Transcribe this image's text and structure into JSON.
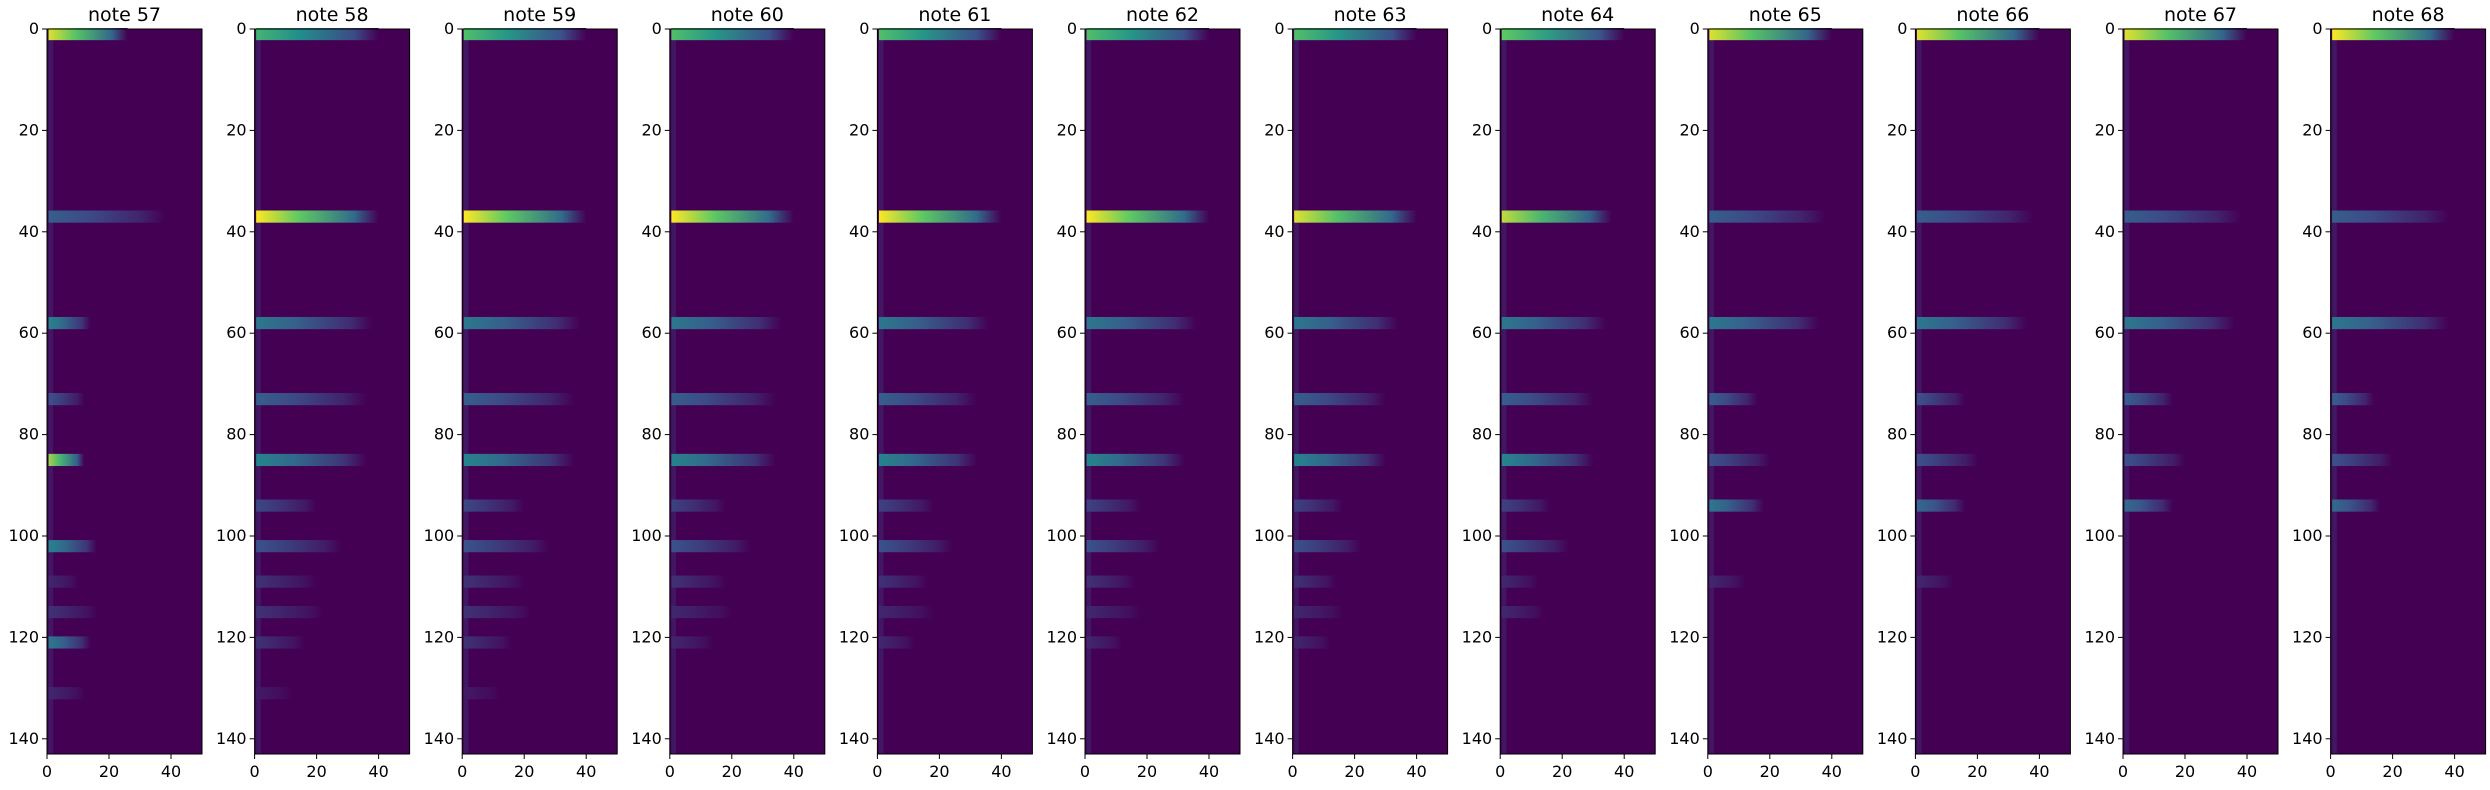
{
  "figure": {
    "colormap": "viridis",
    "background_color": "#440154"
  },
  "chart_data": {
    "type": "heatmap",
    "xlim": [
      0,
      50
    ],
    "ylim": [
      143,
      0
    ],
    "xticks": [
      0,
      20,
      40
    ],
    "yticks": [
      0,
      20,
      40,
      60,
      80,
      100,
      120,
      140
    ],
    "grid": false,
    "panels": [
      {
        "title": "note 57",
        "bands": [
          {
            "y": 1,
            "intensity": 0.95,
            "length": 26
          },
          {
            "y": 37,
            "intensity": 0.3,
            "length": 38
          },
          {
            "y": 58,
            "intensity": 0.45,
            "length": 14
          },
          {
            "y": 73,
            "intensity": 0.25,
            "length": 12
          },
          {
            "y": 85,
            "intensity": 0.85,
            "length": 12
          },
          {
            "y": 102,
            "intensity": 0.45,
            "length": 16
          },
          {
            "y": 109,
            "intensity": 0.12,
            "length": 10
          },
          {
            "y": 115,
            "intensity": 0.15,
            "length": 16
          },
          {
            "y": 121,
            "intensity": 0.4,
            "length": 14
          },
          {
            "y": 131,
            "intensity": 0.12,
            "length": 12
          }
        ]
      },
      {
        "title": "note 58",
        "bands": [
          {
            "y": 1,
            "intensity": 0.65,
            "length": 40
          },
          {
            "y": 37,
            "intensity": 1.0,
            "length": 40
          },
          {
            "y": 58,
            "intensity": 0.4,
            "length": 38
          },
          {
            "y": 73,
            "intensity": 0.3,
            "length": 36
          },
          {
            "y": 85,
            "intensity": 0.45,
            "length": 36
          },
          {
            "y": 94,
            "intensity": 0.22,
            "length": 20
          },
          {
            "y": 102,
            "intensity": 0.25,
            "length": 28
          },
          {
            "y": 109,
            "intensity": 0.15,
            "length": 20
          },
          {
            "y": 115,
            "intensity": 0.15,
            "length": 22
          },
          {
            "y": 121,
            "intensity": 0.15,
            "length": 16
          },
          {
            "y": 131,
            "intensity": 0.08,
            "length": 12
          }
        ]
      },
      {
        "title": "note 59",
        "bands": [
          {
            "y": 1,
            "intensity": 0.7,
            "length": 40
          },
          {
            "y": 37,
            "intensity": 1.0,
            "length": 40
          },
          {
            "y": 58,
            "intensity": 0.4,
            "length": 38
          },
          {
            "y": 73,
            "intensity": 0.3,
            "length": 36
          },
          {
            "y": 85,
            "intensity": 0.45,
            "length": 36
          },
          {
            "y": 94,
            "intensity": 0.22,
            "length": 20
          },
          {
            "y": 102,
            "intensity": 0.25,
            "length": 28
          },
          {
            "y": 109,
            "intensity": 0.15,
            "length": 20
          },
          {
            "y": 115,
            "intensity": 0.15,
            "length": 22
          },
          {
            "y": 121,
            "intensity": 0.15,
            "length": 16
          },
          {
            "y": 131,
            "intensity": 0.08,
            "length": 12
          }
        ]
      },
      {
        "title": "note 60",
        "bands": [
          {
            "y": 1,
            "intensity": 0.7,
            "length": 40
          },
          {
            "y": 37,
            "intensity": 1.0,
            "length": 40
          },
          {
            "y": 58,
            "intensity": 0.4,
            "length": 36
          },
          {
            "y": 73,
            "intensity": 0.3,
            "length": 34
          },
          {
            "y": 85,
            "intensity": 0.45,
            "length": 34
          },
          {
            "y": 94,
            "intensity": 0.2,
            "length": 18
          },
          {
            "y": 102,
            "intensity": 0.25,
            "length": 26
          },
          {
            "y": 109,
            "intensity": 0.15,
            "length": 18
          },
          {
            "y": 115,
            "intensity": 0.12,
            "length": 20
          },
          {
            "y": 121,
            "intensity": 0.12,
            "length": 14
          }
        ]
      },
      {
        "title": "note 61",
        "bands": [
          {
            "y": 1,
            "intensity": 0.7,
            "length": 40
          },
          {
            "y": 37,
            "intensity": 1.0,
            "length": 40
          },
          {
            "y": 58,
            "intensity": 0.4,
            "length": 36
          },
          {
            "y": 73,
            "intensity": 0.3,
            "length": 32
          },
          {
            "y": 85,
            "intensity": 0.45,
            "length": 32
          },
          {
            "y": 94,
            "intensity": 0.2,
            "length": 18
          },
          {
            "y": 102,
            "intensity": 0.25,
            "length": 24
          },
          {
            "y": 109,
            "intensity": 0.15,
            "length": 16
          },
          {
            "y": 115,
            "intensity": 0.12,
            "length": 18
          },
          {
            "y": 121,
            "intensity": 0.12,
            "length": 12
          }
        ]
      },
      {
        "title": "note 62",
        "bands": [
          {
            "y": 1,
            "intensity": 0.7,
            "length": 40
          },
          {
            "y": 37,
            "intensity": 1.0,
            "length": 40
          },
          {
            "y": 58,
            "intensity": 0.4,
            "length": 36
          },
          {
            "y": 73,
            "intensity": 0.3,
            "length": 32
          },
          {
            "y": 85,
            "intensity": 0.45,
            "length": 32
          },
          {
            "y": 94,
            "intensity": 0.2,
            "length": 18
          },
          {
            "y": 102,
            "intensity": 0.25,
            "length": 24
          },
          {
            "y": 109,
            "intensity": 0.15,
            "length": 16
          },
          {
            "y": 115,
            "intensity": 0.12,
            "length": 18
          },
          {
            "y": 121,
            "intensity": 0.12,
            "length": 12
          }
        ]
      },
      {
        "title": "note 63",
        "bands": [
          {
            "y": 1,
            "intensity": 0.7,
            "length": 40
          },
          {
            "y": 37,
            "intensity": 0.95,
            "length": 40
          },
          {
            "y": 58,
            "intensity": 0.4,
            "length": 34
          },
          {
            "y": 73,
            "intensity": 0.3,
            "length": 30
          },
          {
            "y": 85,
            "intensity": 0.45,
            "length": 30
          },
          {
            "y": 94,
            "intensity": 0.2,
            "length": 16
          },
          {
            "y": 102,
            "intensity": 0.25,
            "length": 22
          },
          {
            "y": 109,
            "intensity": 0.15,
            "length": 14
          },
          {
            "y": 115,
            "intensity": 0.12,
            "length": 16
          },
          {
            "y": 121,
            "intensity": 0.12,
            "length": 12
          }
        ]
      },
      {
        "title": "note 64",
        "bands": [
          {
            "y": 1,
            "intensity": 0.75,
            "length": 40
          },
          {
            "y": 37,
            "intensity": 0.9,
            "length": 36
          },
          {
            "y": 58,
            "intensity": 0.4,
            "length": 34
          },
          {
            "y": 73,
            "intensity": 0.3,
            "length": 30
          },
          {
            "y": 85,
            "intensity": 0.45,
            "length": 30
          },
          {
            "y": 94,
            "intensity": 0.2,
            "length": 16
          },
          {
            "y": 102,
            "intensity": 0.25,
            "length": 22
          },
          {
            "y": 109,
            "intensity": 0.12,
            "length": 12
          },
          {
            "y": 115,
            "intensity": 0.12,
            "length": 14
          }
        ]
      },
      {
        "title": "note 65",
        "bands": [
          {
            "y": 1,
            "intensity": 0.95,
            "length": 40
          },
          {
            "y": 37,
            "intensity": 0.3,
            "length": 38
          },
          {
            "y": 58,
            "intensity": 0.4,
            "length": 36
          },
          {
            "y": 73,
            "intensity": 0.3,
            "length": 16
          },
          {
            "y": 85,
            "intensity": 0.25,
            "length": 20
          },
          {
            "y": 94,
            "intensity": 0.4,
            "length": 18
          },
          {
            "y": 109,
            "intensity": 0.12,
            "length": 12
          }
        ]
      },
      {
        "title": "note 66",
        "bands": [
          {
            "y": 1,
            "intensity": 0.95,
            "length": 40
          },
          {
            "y": 37,
            "intensity": 0.3,
            "length": 38
          },
          {
            "y": 58,
            "intensity": 0.4,
            "length": 36
          },
          {
            "y": 73,
            "intensity": 0.25,
            "length": 16
          },
          {
            "y": 85,
            "intensity": 0.25,
            "length": 20
          },
          {
            "y": 94,
            "intensity": 0.35,
            "length": 16
          },
          {
            "y": 109,
            "intensity": 0.12,
            "length": 12
          }
        ]
      },
      {
        "title": "note 67",
        "bands": [
          {
            "y": 1,
            "intensity": 0.95,
            "length": 40
          },
          {
            "y": 37,
            "intensity": 0.3,
            "length": 38
          },
          {
            "y": 58,
            "intensity": 0.4,
            "length": 36
          },
          {
            "y": 73,
            "intensity": 0.3,
            "length": 16
          },
          {
            "y": 85,
            "intensity": 0.25,
            "length": 20
          },
          {
            "y": 94,
            "intensity": 0.35,
            "length": 16
          }
        ]
      },
      {
        "title": "note 68",
        "bands": [
          {
            "y": 1,
            "intensity": 1.0,
            "length": 40
          },
          {
            "y": 37,
            "intensity": 0.3,
            "length": 38
          },
          {
            "y": 58,
            "intensity": 0.4,
            "length": 38
          },
          {
            "y": 73,
            "intensity": 0.3,
            "length": 14
          },
          {
            "y": 85,
            "intensity": 0.25,
            "length": 20
          },
          {
            "y": 94,
            "intensity": 0.35,
            "length": 16
          }
        ]
      }
    ]
  }
}
